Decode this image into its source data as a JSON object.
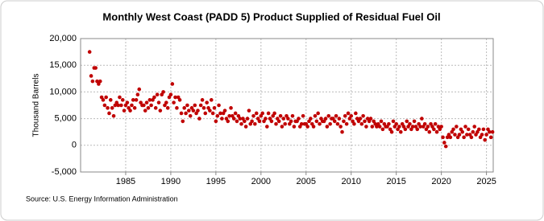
{
  "chart_data": {
    "type": "scatter",
    "title": "Monthly West Coast (PADD 5) Product Supplied of Residual Fuel Oil",
    "y_label": "Thousand Barrels",
    "source": "Source: U.S. Energy Information Administration",
    "xlim": [
      1980,
      2025.75
    ],
    "xticks": [
      1985,
      1990,
      1995,
      2000,
      2005,
      2010,
      2015,
      2020,
      2025
    ],
    "ylim": [
      -5000,
      20000
    ],
    "yticks": [
      {
        "value": -5000,
        "label": "-5,000"
      },
      0,
      {
        "value": 5000,
        "label": "5,000"
      },
      {
        "value": 10000,
        "label": "10,000"
      },
      {
        "value": 15000,
        "label": "15,000"
      },
      {
        "value": 20000,
        "label": "20,000"
      }
    ],
    "grid": true,
    "color": "#c00000",
    "x": [
      1981,
      1981.17,
      1981.33,
      1981.5,
      1981.67,
      1981.83,
      1982,
      1982.17,
      1982.33,
      1982.5,
      1982.67,
      1982.83,
      1983,
      1983.17,
      1983.33,
      1983.5,
      1983.67,
      1983.83,
      1984,
      1984.17,
      1984.33,
      1984.5,
      1984.67,
      1984.83,
      1985,
      1985.17,
      1985.33,
      1985.5,
      1985.67,
      1985.83,
      1986,
      1986.17,
      1986.33,
      1986.5,
      1986.67,
      1986.83,
      1987,
      1987.17,
      1987.33,
      1987.5,
      1987.67,
      1987.83,
      1988,
      1988.17,
      1988.33,
      1988.5,
      1988.67,
      1988.83,
      1989,
      1989.17,
      1989.33,
      1989.5,
      1989.67,
      1989.83,
      1990,
      1990.17,
      1990.33,
      1990.5,
      1990.67,
      1990.83,
      1991,
      1991.17,
      1991.33,
      1991.5,
      1991.67,
      1991.83,
      1992,
      1992.17,
      1992.33,
      1992.5,
      1992.67,
      1992.83,
      1993,
      1993.17,
      1993.33,
      1993.5,
      1993.67,
      1993.83,
      1994,
      1994.17,
      1994.33,
      1994.5,
      1994.67,
      1994.83,
      1995,
      1995.17,
      1995.33,
      1995.5,
      1995.67,
      1995.83,
      1996,
      1996.17,
      1996.33,
      1996.5,
      1996.67,
      1996.83,
      1997,
      1997.17,
      1997.33,
      1997.5,
      1997.67,
      1997.83,
      1998,
      1998.17,
      1998.33,
      1998.5,
      1998.67,
      1998.83,
      1999,
      1999.17,
      1999.33,
      1999.5,
      1999.67,
      1999.83,
      2000,
      2000.17,
      2000.33,
      2000.5,
      2000.67,
      2000.83,
      2001,
      2001.17,
      2001.33,
      2001.5,
      2001.67,
      2001.83,
      2002,
      2002.17,
      2002.33,
      2002.5,
      2002.67,
      2002.83,
      2003,
      2003.17,
      2003.33,
      2003.5,
      2003.67,
      2003.83,
      2004,
      2004.17,
      2004.33,
      2004.5,
      2004.67,
      2004.83,
      2005,
      2005.17,
      2005.33,
      2005.5,
      2005.67,
      2005.83,
      2006,
      2006.17,
      2006.33,
      2006.5,
      2006.67,
      2006.83,
      2007,
      2007.17,
      2007.33,
      2007.5,
      2007.67,
      2007.83,
      2008,
      2008.17,
      2008.33,
      2008.5,
      2008.67,
      2008.83,
      2009,
      2009.17,
      2009.33,
      2009.5,
      2009.67,
      2009.83,
      2010,
      2010.17,
      2010.33,
      2010.5,
      2010.67,
      2010.83,
      2011,
      2011.17,
      2011.33,
      2011.5,
      2011.67,
      2011.83,
      2012,
      2012.17,
      2012.33,
      2012.5,
      2012.67,
      2012.83,
      2013,
      2013.17,
      2013.33,
      2013.5,
      2013.67,
      2013.83,
      2014,
      2014.17,
      2014.33,
      2014.5,
      2014.67,
      2014.83,
      2015,
      2015.17,
      2015.33,
      2015.5,
      2015.67,
      2015.83,
      2016,
      2016.17,
      2016.33,
      2016.5,
      2016.67,
      2016.83,
      2017,
      2017.17,
      2017.33,
      2017.5,
      2017.67,
      2017.83,
      2018,
      2018.17,
      2018.33,
      2018.5,
      2018.67,
      2018.83,
      2019,
      2019.17,
      2019.33,
      2019.5,
      2019.67,
      2019.83,
      2020,
      2020.17,
      2020.33,
      2020.5,
      2020.67,
      2020.83,
      2021,
      2021.17,
      2021.33,
      2021.5,
      2021.67,
      2021.83,
      2022,
      2022.17,
      2022.33,
      2022.5,
      2022.67,
      2022.83,
      2023,
      2023.17,
      2023.33,
      2023.5,
      2023.67,
      2023.83,
      2024,
      2024.17,
      2024.33,
      2024.5,
      2024.67,
      2024.83,
      2025,
      2025.17,
      2025.33,
      2025.5,
      2025.67
    ],
    "values": [
      17500,
      13000,
      12000,
      14500,
      14500,
      12000,
      11500,
      12000,
      9000,
      8500,
      7500,
      9000,
      7000,
      6000,
      8500,
      7000,
      5500,
      7500,
      8000,
      7500,
      9000,
      7500,
      8500,
      6500,
      7500,
      8000,
      7000,
      6500,
      7500,
      8500,
      7000,
      8500,
      9500,
      10500,
      8000,
      7500,
      7500,
      6500,
      8000,
      7000,
      8500,
      7500,
      8500,
      9000,
      7000,
      9500,
      8000,
      6500,
      9500,
      10000,
      7500,
      8000,
      7000,
      9000,
      9500,
      11500,
      8000,
      9000,
      7000,
      9000,
      8500,
      6000,
      4500,
      7000,
      6000,
      7500,
      6500,
      5500,
      7000,
      6500,
      7500,
      6000,
      6500,
      5000,
      7500,
      8500,
      7000,
      6000,
      8000,
      7000,
      6500,
      8500,
      6000,
      7000,
      4500,
      5500,
      7500,
      6000,
      5000,
      6000,
      6500,
      5000,
      4500,
      5500,
      7000,
      5500,
      5000,
      6000,
      4500,
      5500,
      5000,
      4000,
      5000,
      4500,
      3500,
      5000,
      6500,
      4000,
      4500,
      5500,
      4000,
      6000,
      5000,
      4500,
      5500,
      6000,
      4500,
      5000,
      3500,
      6000,
      5000,
      4500,
      5500,
      6000,
      4000,
      5000,
      4500,
      5500,
      3500,
      5000,
      4000,
      5500,
      5000,
      4000,
      4500,
      5500,
      3500,
      4500,
      4500,
      5000,
      3500,
      4000,
      5500,
      4000,
      4000,
      3500,
      4500,
      5000,
      4000,
      3500,
      5500,
      4500,
      6000,
      4000,
      5000,
      4500,
      4500,
      5000,
      3500,
      5500,
      4000,
      5000,
      5000,
      4500,
      5500,
      4000,
      5000,
      3500,
      2500,
      4500,
      5500,
      4000,
      6000,
      5000,
      5500,
      4500,
      4000,
      6000,
      5000,
      4500,
      5000,
      4000,
      5500,
      4500,
      3500,
      5000,
      4500,
      5000,
      3500,
      4500,
      4000,
      3500,
      4000,
      3500,
      4500,
      3000,
      4000,
      3500,
      3500,
      4000,
      3000,
      2500,
      4500,
      3500,
      4000,
      3000,
      3500,
      2500,
      4000,
      3500,
      3000,
      4500,
      3500,
      4000,
      3000,
      3500,
      4500,
      3500,
      3000,
      4000,
      3500,
      5000,
      3500,
      4000,
      3000,
      3500,
      2500,
      4000,
      3500,
      3000,
      4000,
      2500,
      3500,
      3000,
      3500,
      1500,
      500,
      -200,
      1500,
      2000,
      1500,
      2500,
      3000,
      2000,
      3500,
      1500,
      2000,
      3000,
      2500,
      1500,
      3500,
      2000,
      3000,
      2000,
      1500,
      2500,
      3500,
      2000,
      2500,
      3000,
      1500,
      2000,
      3000,
      1000,
      2000,
      3000,
      2500,
      1500,
      2500
    ]
  }
}
